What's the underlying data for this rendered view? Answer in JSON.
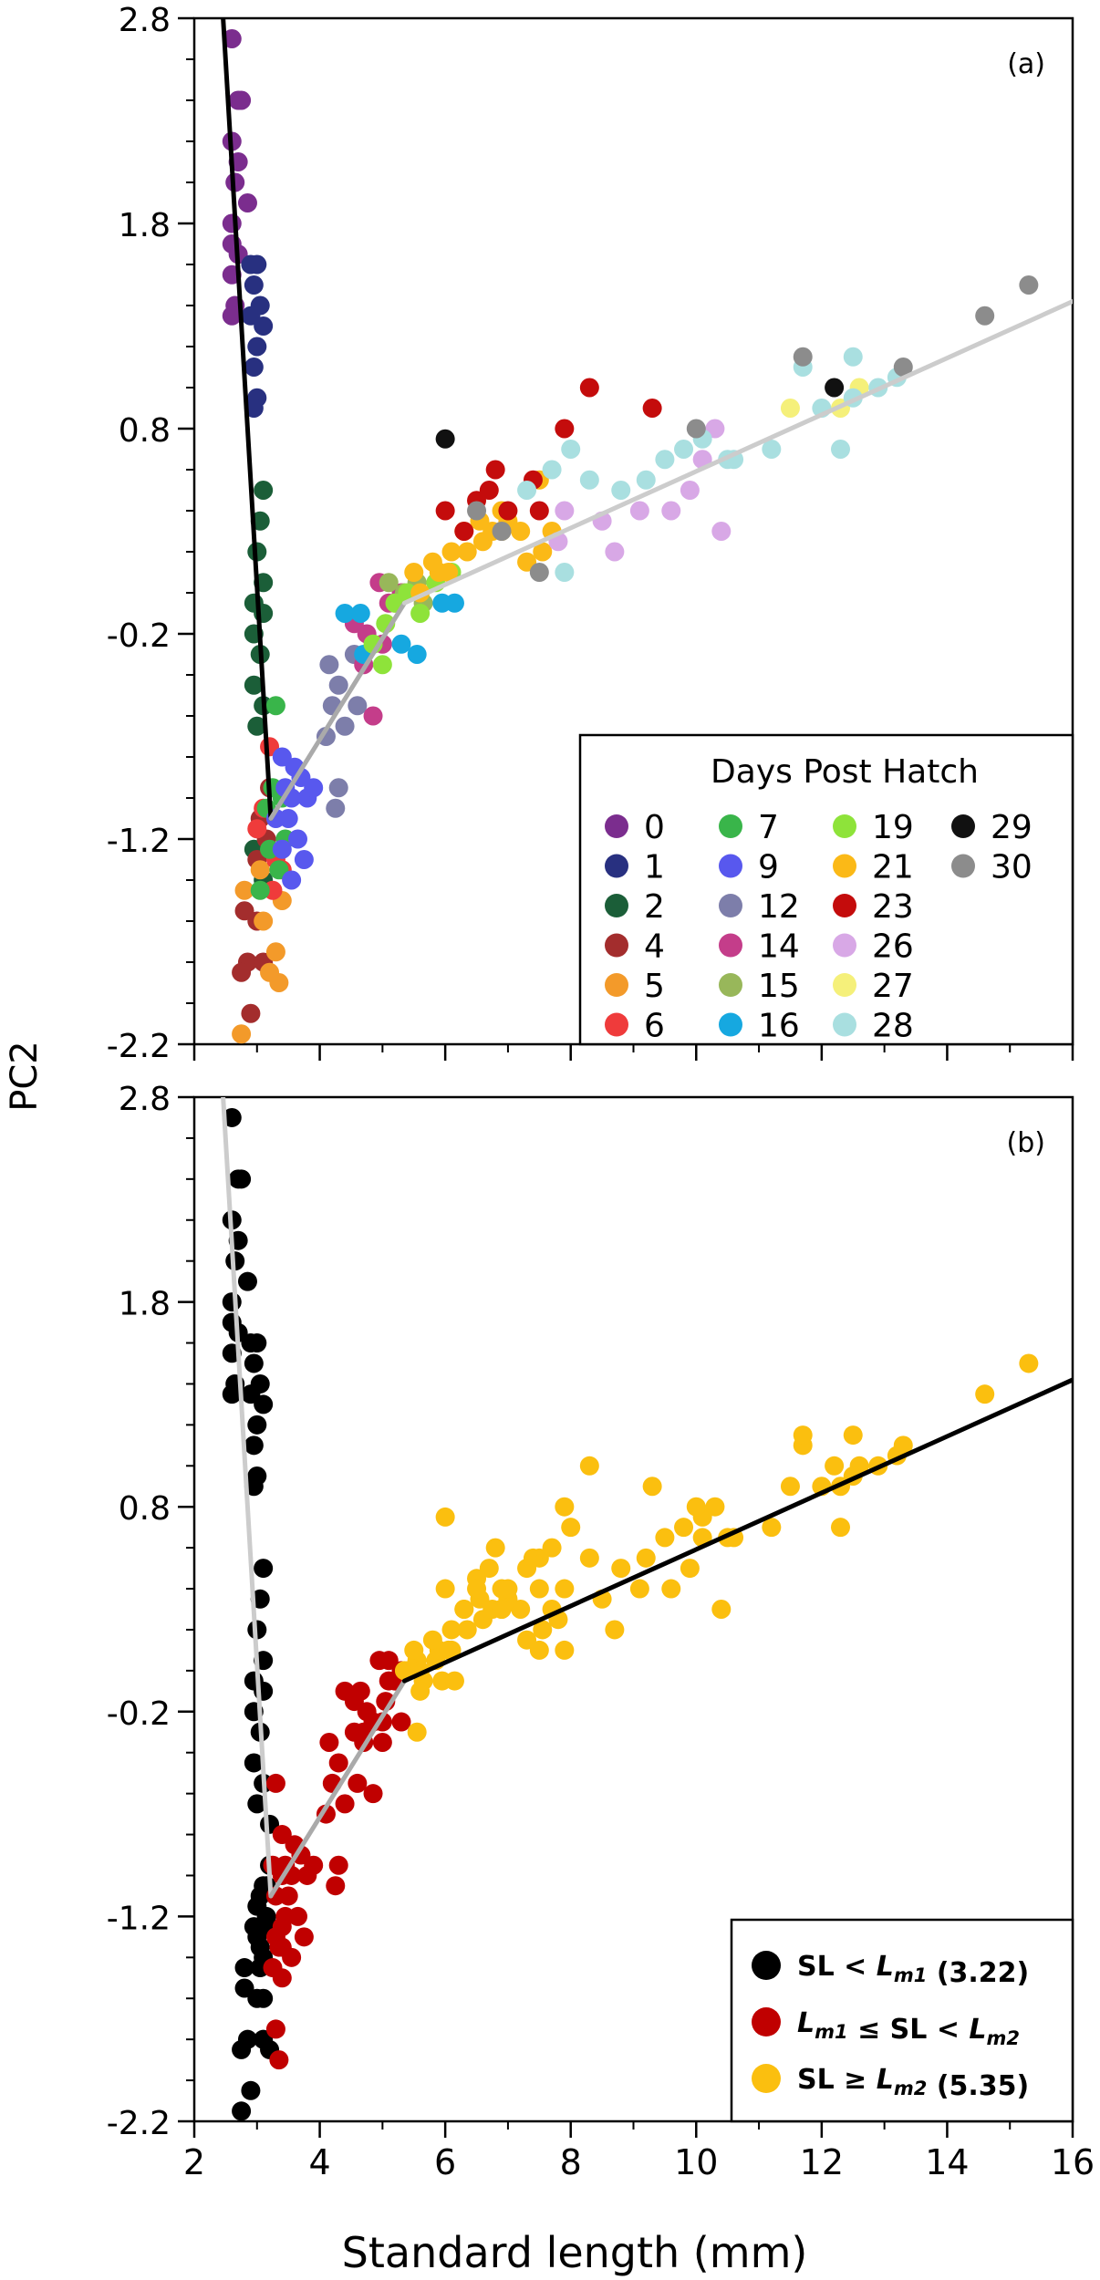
{
  "figure": {
    "ylabel": "PC2",
    "xlabel": "Standard length (mm)"
  },
  "chart_data": [
    {
      "type": "scatter",
      "panel_label": "(a)",
      "xlim": [
        2,
        16
      ],
      "ylim": [
        -2.2,
        2.8
      ],
      "x_ticks": [
        2,
        4,
        6,
        8,
        10,
        12,
        14,
        16
      ],
      "y_ticks": [
        -2.2,
        -1.2,
        -0.2,
        0.8,
        1.8,
        2.8
      ],
      "y_tick_labels": [
        "-2.2",
        "-1.2",
        "-0.2",
        "0.8",
        "1.8",
        "2.8"
      ],
      "x_tick_labels_shown": false,
      "grid": false,
      "legend_position": "bottom-right",
      "legend_title": "Days Post Hatch",
      "series": [
        {
          "name": "0",
          "color": "#7b2d8e",
          "points": [
            [
              2.6,
              2.7
            ],
            [
              2.7,
              2.4
            ],
            [
              2.75,
              2.4
            ],
            [
              2.6,
              2.2
            ],
            [
              2.7,
              2.1
            ],
            [
              2.65,
              2.0
            ],
            [
              2.85,
              1.9
            ],
            [
              2.6,
              1.8
            ],
            [
              2.6,
              1.7
            ],
            [
              2.7,
              1.65
            ],
            [
              2.6,
              1.55
            ],
            [
              2.65,
              1.4
            ],
            [
              2.6,
              1.35
            ]
          ]
        },
        {
          "name": "1",
          "color": "#283080",
          "points": [
            [
              2.9,
              1.6
            ],
            [
              3.0,
              1.6
            ],
            [
              2.95,
              1.5
            ],
            [
              3.05,
              1.4
            ],
            [
              2.9,
              1.35
            ],
            [
              3.1,
              1.3
            ],
            [
              3.0,
              1.2
            ],
            [
              2.95,
              1.1
            ],
            [
              3.0,
              0.95
            ],
            [
              2.95,
              0.9
            ]
          ]
        },
        {
          "name": "2",
          "color": "#1b5e38",
          "points": [
            [
              3.1,
              0.5
            ],
            [
              3.05,
              0.35
            ],
            [
              3.0,
              0.2
            ],
            [
              3.1,
              0.05
            ],
            [
              2.95,
              -0.05
            ],
            [
              3.1,
              -0.1
            ],
            [
              2.95,
              -0.2
            ],
            [
              3.05,
              -0.3
            ],
            [
              2.95,
              -0.45
            ],
            [
              3.1,
              -0.55
            ],
            [
              3.0,
              -0.65
            ],
            [
              2.95,
              -1.25
            ],
            [
              3.1,
              -1.4
            ]
          ]
        },
        {
          "name": "4",
          "color": "#a32d2d",
          "points": [
            [
              3.2,
              -0.95
            ],
            [
              3.05,
              -1.1
            ],
            [
              3.15,
              -1.2
            ],
            [
              3.0,
              -1.3
            ],
            [
              2.8,
              -1.55
            ],
            [
              3.0,
              -1.6
            ],
            [
              2.85,
              -1.8
            ],
            [
              2.75,
              -1.85
            ],
            [
              2.9,
              -2.05
            ],
            [
              3.1,
              -1.8
            ]
          ]
        },
        {
          "name": "5",
          "color": "#f39a2a",
          "points": [
            [
              2.8,
              -1.45
            ],
            [
              3.1,
              -1.6
            ],
            [
              3.3,
              -1.75
            ],
            [
              3.35,
              -1.9
            ],
            [
              3.2,
              -1.85
            ],
            [
              2.75,
              -2.15
            ],
            [
              3.05,
              -1.35
            ],
            [
              3.4,
              -1.5
            ]
          ]
        },
        {
          "name": "6",
          "color": "#ef3b3b",
          "points": [
            [
              3.2,
              -0.75
            ],
            [
              3.1,
              -1.05
            ],
            [
              3.4,
              -1.35
            ],
            [
              3.25,
              -1.45
            ],
            [
              3.0,
              -1.15
            ],
            [
              3.3,
              -1.3
            ]
          ]
        },
        {
          "name": "7",
          "color": "#39b54a",
          "points": [
            [
              3.3,
              -0.55
            ],
            [
              3.25,
              -0.95
            ],
            [
              3.15,
              -1.05
            ],
            [
              3.4,
              -1.0
            ],
            [
              3.2,
              -1.25
            ],
            [
              3.35,
              -1.35
            ],
            [
              3.05,
              -1.45
            ],
            [
              3.45,
              -1.2
            ]
          ]
        },
        {
          "name": "9",
          "color": "#5858ee",
          "points": [
            [
              3.4,
              -0.8
            ],
            [
              3.6,
              -0.85
            ],
            [
              3.7,
              -0.9
            ],
            [
              3.55,
              -1.0
            ],
            [
              3.8,
              -1.0
            ],
            [
              3.5,
              -1.1
            ],
            [
              3.65,
              -1.2
            ],
            [
              3.4,
              -1.25
            ],
            [
              3.75,
              -1.3
            ],
            [
              3.55,
              -1.4
            ],
            [
              3.3,
              -1.1
            ],
            [
              3.9,
              -0.95
            ],
            [
              3.45,
              -0.95
            ]
          ]
        },
        {
          "name": "12",
          "color": "#7d7eaa",
          "points": [
            [
              4.15,
              -0.35
            ],
            [
              4.3,
              -0.45
            ],
            [
              4.2,
              -0.55
            ],
            [
              4.4,
              -0.65
            ],
            [
              4.6,
              -0.55
            ],
            [
              4.3,
              -0.95
            ],
            [
              4.25,
              -1.05
            ],
            [
              4.55,
              -0.3
            ],
            [
              4.1,
              -0.7
            ]
          ]
        },
        {
          "name": "14",
          "color": "#c43d8a",
          "points": [
            [
              4.55,
              -0.15
            ],
            [
              4.75,
              -0.2
            ],
            [
              5.0,
              -0.25
            ],
            [
              4.7,
              -0.35
            ],
            [
              4.95,
              0.05
            ],
            [
              5.1,
              -0.05
            ],
            [
              4.85,
              -0.6
            ],
            [
              5.3,
              0.0
            ]
          ]
        },
        {
          "name": "15",
          "color": "#98b75a",
          "points": [
            [
              5.1,
              0.05
            ],
            [
              5.35,
              0.0
            ],
            [
              5.55,
              0.05
            ],
            [
              5.2,
              -0.05
            ],
            [
              5.65,
              -0.05
            ]
          ]
        },
        {
          "name": "16",
          "color": "#16a8e0",
          "points": [
            [
              4.4,
              -0.1
            ],
            [
              4.65,
              -0.1
            ],
            [
              4.7,
              -0.3
            ],
            [
              5.3,
              -0.25
            ],
            [
              5.55,
              -0.3
            ],
            [
              5.95,
              -0.05
            ],
            [
              6.15,
              -0.05
            ]
          ]
        },
        {
          "name": "19",
          "color": "#8ee33a",
          "points": [
            [
              4.85,
              -0.25
            ],
            [
              5.05,
              -0.15
            ],
            [
              5.2,
              -0.05
            ],
            [
              5.4,
              0.0
            ],
            [
              5.6,
              -0.1
            ],
            [
              5.85,
              0.05
            ],
            [
              6.1,
              0.1
            ],
            [
              5.0,
              -0.35
            ]
          ]
        },
        {
          "name": "21",
          "color": "#fbb917",
          "points": [
            [
              5.6,
              0.0
            ],
            [
              5.9,
              0.1
            ],
            [
              6.35,
              0.2
            ],
            [
              6.6,
              0.25
            ],
            [
              6.9,
              0.3
            ],
            [
              7.2,
              0.3
            ],
            [
              7.55,
              0.2
            ],
            [
              6.1,
              0.2
            ],
            [
              6.55,
              0.35
            ],
            [
              6.9,
              0.4
            ],
            [
              7.5,
              0.55
            ],
            [
              6.3,
              0.3
            ],
            [
              6.75,
              0.3
            ],
            [
              7.3,
              0.15
            ],
            [
              5.5,
              0.1
            ],
            [
              5.8,
              0.15
            ],
            [
              6.05,
              0.1
            ],
            [
              7.0,
              0.35
            ],
            [
              7.7,
              0.3
            ]
          ]
        },
        {
          "name": "23",
          "color": "#c40c0c",
          "points": [
            [
              6.0,
              0.4
            ],
            [
              6.3,
              0.3
            ],
            [
              6.5,
              0.45
            ],
            [
              6.7,
              0.5
            ],
            [
              6.8,
              0.6
            ],
            [
              7.0,
              0.4
            ],
            [
              7.4,
              0.55
            ],
            [
              7.5,
              0.4
            ],
            [
              7.9,
              0.8
            ],
            [
              8.3,
              1.0
            ],
            [
              9.3,
              0.9
            ]
          ]
        },
        {
          "name": "26",
          "color": "#d8a8e6",
          "points": [
            [
              7.9,
              0.4
            ],
            [
              8.5,
              0.35
            ],
            [
              9.1,
              0.4
            ],
            [
              9.6,
              0.4
            ],
            [
              10.1,
              0.65
            ],
            [
              10.3,
              0.8
            ],
            [
              9.9,
              0.5
            ],
            [
              10.4,
              0.3
            ],
            [
              7.8,
              0.25
            ],
            [
              8.7,
              0.2
            ]
          ]
        },
        {
          "name": "27",
          "color": "#f5f07a",
          "points": [
            [
              11.5,
              0.9
            ],
            [
              12.6,
              1.0
            ],
            [
              12.3,
              0.9
            ]
          ]
        },
        {
          "name": "28",
          "color": "#a9dfe0",
          "points": [
            [
              7.3,
              0.5
            ],
            [
              7.7,
              0.6
            ],
            [
              8.0,
              0.7
            ],
            [
              8.3,
              0.55
            ],
            [
              8.8,
              0.5
            ],
            [
              9.2,
              0.55
            ],
            [
              9.5,
              0.65
            ],
            [
              9.8,
              0.7
            ],
            [
              10.1,
              0.75
            ],
            [
              10.5,
              0.65
            ],
            [
              11.2,
              0.7
            ],
            [
              12.0,
              0.9
            ],
            [
              12.5,
              0.95
            ],
            [
              12.9,
              1.0
            ],
            [
              13.2,
              1.05
            ],
            [
              12.5,
              1.15
            ],
            [
              11.7,
              1.1
            ],
            [
              7.9,
              0.1
            ],
            [
              10.6,
              0.65
            ],
            [
              12.3,
              0.7
            ]
          ]
        },
        {
          "name": "29",
          "color": "#111111",
          "points": [
            [
              6.0,
              0.75
            ],
            [
              12.2,
              1.0
            ]
          ]
        },
        {
          "name": "30",
          "color": "#8c8c8c",
          "points": [
            [
              6.5,
              0.4
            ],
            [
              7.5,
              0.1
            ],
            [
              10.0,
              0.8
            ],
            [
              11.7,
              1.15
            ],
            [
              13.3,
              1.1
            ],
            [
              14.6,
              1.35
            ],
            [
              15.3,
              1.5
            ],
            [
              6.9,
              0.3
            ]
          ]
        }
      ],
      "fit_lines": [
        {
          "color": "#000000",
          "points": [
            [
              2.45,
              2.85
            ],
            [
              3.22,
              -1.1
            ]
          ]
        },
        {
          "color": "#aaaaaa",
          "points": [
            [
              3.22,
              -1.1
            ],
            [
              5.35,
              -0.05
            ]
          ]
        },
        {
          "color": "#cccccc",
          "points": [
            [
              5.35,
              -0.05
            ],
            [
              16,
              1.42
            ]
          ]
        }
      ]
    },
    {
      "type": "scatter",
      "panel_label": "(b)",
      "xlim": [
        2,
        16
      ],
      "ylim": [
        -2.2,
        2.8
      ],
      "x_ticks": [
        2,
        4,
        6,
        8,
        10,
        12,
        14,
        16
      ],
      "y_ticks": [
        -2.2,
        -1.2,
        -0.2,
        0.8,
        1.8,
        2.8
      ],
      "y_tick_labels": [
        "-2.2",
        "-1.2",
        "-0.2",
        "0.8",
        "1.8",
        "2.8"
      ],
      "x_tick_labels": [
        "2",
        "4",
        "6",
        "8",
        "10",
        "12",
        "14",
        "16"
      ],
      "grid": false,
      "legend_position": "bottom-right",
      "series": [
        {
          "name": "SL < Lm1 (3.22)",
          "color": "#000000",
          "points": []
        },
        {
          "name": "Lm1 ≤ SL < Lm2",
          "color": "#c00000",
          "points": []
        },
        {
          "name": "SL ≥ Lm2 (5.35)",
          "color": "#fbbf0f",
          "points": []
        }
      ],
      "legend": [
        {
          "parts": [
            {
              "t": "SL < "
            },
            {
              "t": "L",
              "i": true
            },
            {
              "t": "m1",
              "i": true,
              "sub": true
            },
            {
              "t": " (3.22)"
            }
          ],
          "color": "#000000"
        },
        {
          "parts": [
            {
              "t": "L",
              "i": true
            },
            {
              "t": "m1",
              "i": true,
              "sub": true
            },
            {
              "t": " ≤ SL < "
            },
            {
              "t": "L",
              "i": true
            },
            {
              "t": "m2",
              "i": true,
              "sub": true
            }
          ],
          "color": "#c00000"
        },
        {
          "parts": [
            {
              "t": "SL ≥ "
            },
            {
              "t": "L",
              "i": true
            },
            {
              "t": "m2",
              "i": true,
              "sub": true
            },
            {
              "t": " (5.35)"
            }
          ],
          "color": "#fbbf0f"
        }
      ],
      "breakpoints": [
        3.22,
        5.35
      ],
      "fit_lines": [
        {
          "color": "#cccccc",
          "points": [
            [
              2.45,
              2.85
            ],
            [
              3.22,
              -1.1
            ]
          ]
        },
        {
          "color": "#aaaaaa",
          "points": [
            [
              3.22,
              -1.1
            ],
            [
              5.35,
              -0.05
            ]
          ]
        },
        {
          "color": "#000000",
          "points": [
            [
              5.35,
              -0.05
            ],
            [
              16,
              1.42
            ]
          ]
        }
      ]
    }
  ]
}
